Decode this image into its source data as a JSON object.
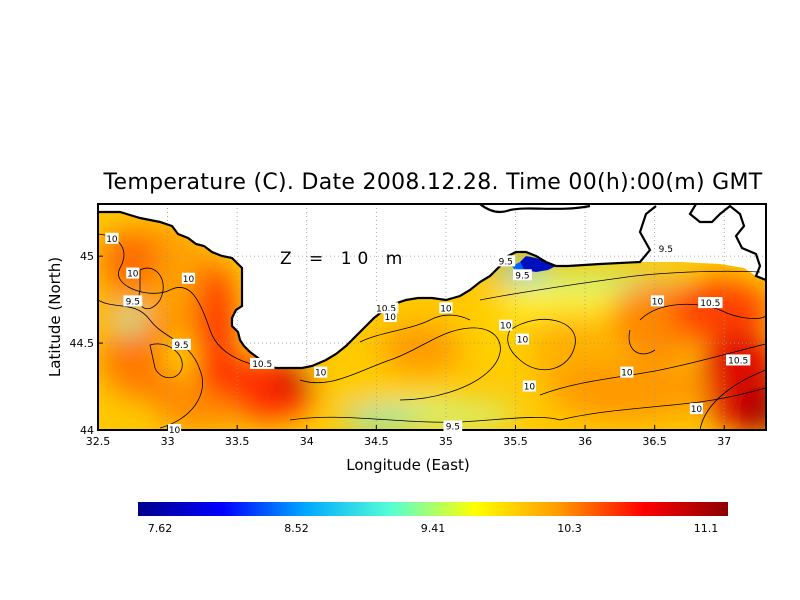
{
  "title": "Temperature (C). Date 2008.12.28. Time 00(h):00(m) GMT",
  "depth_annotation": "Z = 10 m",
  "colors": {
    "land": "#ffffff",
    "coast": "#000000",
    "grid": "#999999",
    "colormap": [
      "#00008b",
      "#0000ff",
      "#00aaff",
      "#55ffd5",
      "#ffff00",
      "#ff9900",
      "#ff0000",
      "#8b0000"
    ]
  },
  "chart_data": {
    "type": "heatmap",
    "xlabel": "Longitude (East)",
    "ylabel": "Latitude (North)",
    "xlim": [
      32.5,
      37.3
    ],
    "ylim": [
      44.0,
      45.3
    ],
    "x_ticks": [
      "32.5",
      "33",
      "33.5",
      "34",
      "34.5",
      "35",
      "35.5",
      "36",
      "36.5",
      "37"
    ],
    "y_ticks": [
      "44",
      "44.5",
      "45"
    ],
    "grid": true,
    "colorbar": {
      "min": 7.62,
      "max": 11.1,
      "tick_labels": [
        "7.62",
        "8.52",
        "9.41",
        "10.3",
        "11.1"
      ]
    },
    "contour_labels": [
      {
        "text": "10",
        "lon": 32.6,
        "lat": 45.1
      },
      {
        "text": "10",
        "lon": 32.75,
        "lat": 44.9
      },
      {
        "text": "9.5",
        "lon": 32.75,
        "lat": 44.74
      },
      {
        "text": "10",
        "lon": 33.15,
        "lat": 44.87
      },
      {
        "text": "9.5",
        "lon": 33.1,
        "lat": 44.49
      },
      {
        "text": "10",
        "lon": 33.05,
        "lat": 44.0
      },
      {
        "text": "10.5",
        "lon": 33.68,
        "lat": 44.38
      },
      {
        "text": "10",
        "lon": 34.1,
        "lat": 44.33
      },
      {
        "text": "10.5",
        "lon": 34.57,
        "lat": 44.7
      },
      {
        "text": "10",
        "lon": 34.6,
        "lat": 44.65
      },
      {
        "text": "10",
        "lon": 35.0,
        "lat": 44.7
      },
      {
        "text": "9.5",
        "lon": 35.43,
        "lat": 44.97
      },
      {
        "text": "9.5",
        "lon": 35.55,
        "lat": 44.89
      },
      {
        "text": "10",
        "lon": 35.43,
        "lat": 44.6
      },
      {
        "text": "10",
        "lon": 35.6,
        "lat": 44.25
      },
      {
        "text": "10",
        "lon": 35.55,
        "lat": 44.52
      },
      {
        "text": "9.5",
        "lon": 35.05,
        "lat": 44.02
      },
      {
        "text": "10",
        "lon": 36.3,
        "lat": 44.33
      },
      {
        "text": "9.5",
        "lon": 36.58,
        "lat": 45.04
      },
      {
        "text": "10",
        "lon": 36.52,
        "lat": 44.74
      },
      {
        "text": "10.5",
        "lon": 36.9,
        "lat": 44.73
      },
      {
        "text": "10",
        "lon": 36.8,
        "lat": 44.12
      },
      {
        "text": "10.5",
        "lon": 37.1,
        "lat": 44.4
      }
    ]
  }
}
